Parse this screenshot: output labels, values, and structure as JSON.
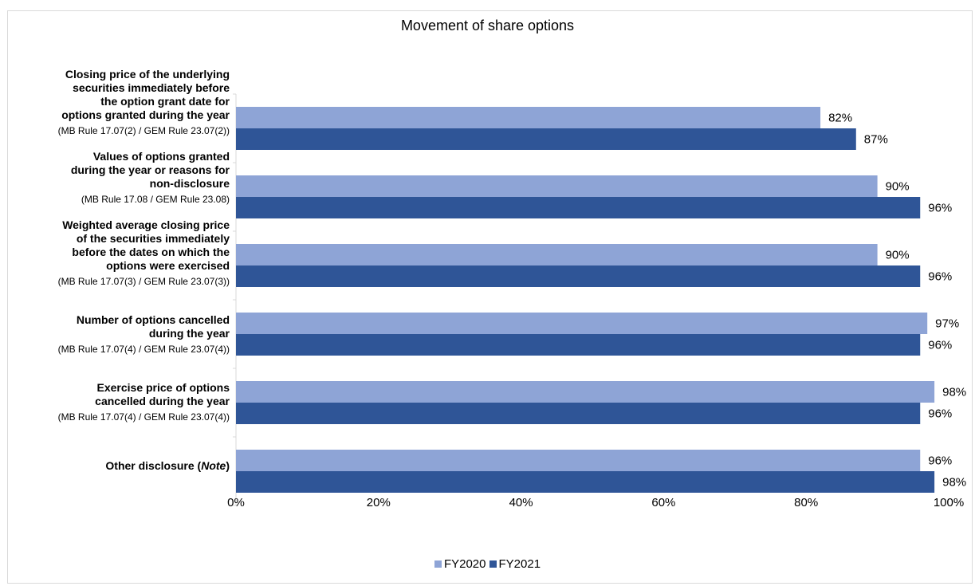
{
  "chart_data": {
    "type": "bar",
    "orientation": "horizontal",
    "title": "Movement of share options",
    "categories": [
      {
        "label": "Closing price of the underlying securities immediately before the option grant date for options granted during the year",
        "sublabel": "(MB Rule 17.07(2) / GEM Rule 23.07(2))"
      },
      {
        "label": "Values of options granted during the year or reasons for non-disclosure",
        "sublabel": "(MB Rule 17.08 / GEM Rule 23.08)"
      },
      {
        "label": "Weighted average closing price of the securities immediately before the dates on which the options were exercised",
        "sublabel": "(MB Rule 17.07(3) / GEM Rule 23.07(3))"
      },
      {
        "label": "Number of options cancelled during the year",
        "sublabel": "(MB Rule 17.07(4) / GEM Rule 23.07(4))"
      },
      {
        "label": "Exercise price of options cancelled during the year",
        "sublabel": "(MB Rule 17.07(4) / GEM Rule 23.07(4))"
      },
      {
        "label": "Other disclosure (",
        "label_em": "Note",
        "label_after": ")",
        "sublabel": ""
      }
    ],
    "series": [
      {
        "name": "FY2020",
        "color": "#8ea4d6",
        "values": [
          82,
          90,
          90,
          97,
          98,
          96
        ]
      },
      {
        "name": "FY2021",
        "color": "#2f5597",
        "values": [
          87,
          96,
          96,
          96,
          96,
          98
        ]
      }
    ],
    "value_suffix": "%",
    "xlim": [
      0,
      100
    ],
    "x_ticks": [
      "0%",
      "20%",
      "40%",
      "60%",
      "80%",
      "100%"
    ],
    "legend_position": "bottom",
    "grid": false
  }
}
